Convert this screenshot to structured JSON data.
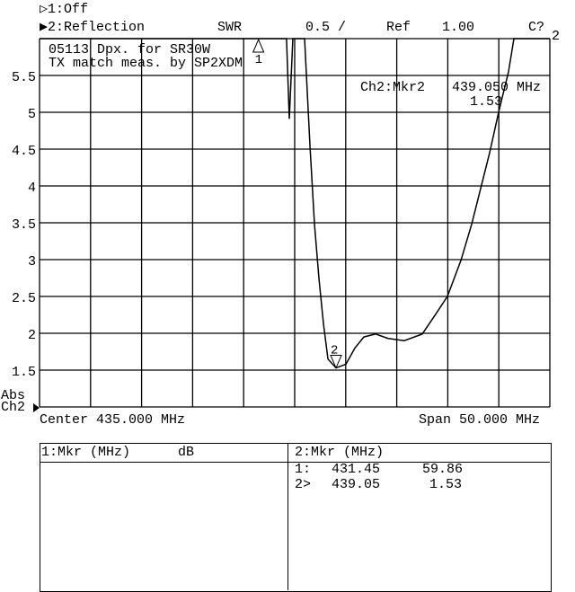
{
  "header": {
    "channel1": "▷1:Off",
    "channel2": "▶2:Reflection",
    "format": "SWR",
    "scale": "0.5 /",
    "ref": "Ref",
    "ref_value": "1.00",
    "cal_status": "C?",
    "cal_sub": "2"
  },
  "annotation": {
    "line1": "05113 Dpx. for SR30W",
    "line2": "TX match meas. by SP2XDM"
  },
  "marker_readout": {
    "label": "Ch2:Mkr2",
    "freq": "439.050 MHz",
    "value": "1.53"
  },
  "side": {
    "abs": "Abs",
    "ch": "Ch2"
  },
  "footer": {
    "center": "Center 435.000 MHz",
    "span": "Span 50.000 MHz"
  },
  "table": {
    "left_header": "1:Mkr (MHz)",
    "left_unit": "dB",
    "right_header": "2:Mkr (MHz)",
    "rows": [
      {
        "id": "1:",
        "freq": "431.45",
        "value": "59.86"
      },
      {
        "id": "2>",
        "freq": "439.05",
        "value": "1.53"
      }
    ]
  },
  "chart_data": {
    "type": "line",
    "xlabel": "",
    "ylabel": "",
    "xlim": [
      410,
      460
    ],
    "ylim": [
      1.0,
      6.0
    ],
    "grid": true,
    "y_ticks": [
      "5.5",
      "5",
      "4.5",
      "4",
      "3.5",
      "3",
      "2.5",
      "2",
      "1.5"
    ],
    "y_tick_values": [
      5.5,
      5,
      4.5,
      4,
      3.5,
      3,
      2.5,
      2,
      1.5
    ],
    "trace_color": "#000000",
    "series": [
      {
        "x": [
          410,
          434.2,
          434.47,
          434.82,
          435.97,
          436.5,
          436.94,
          437.38,
          437.82,
          438.26,
          439.05,
          440.02,
          440.9,
          441.78,
          442.92,
          444.15,
          445.74,
          447.5,
          448.82,
          449.96,
          451.29,
          452.34,
          454.1,
          454.98,
          455.95,
          456.48,
          460
        ],
        "y": [
          6,
          6,
          4.91,
          6,
          6,
          4.54,
          3.48,
          2.74,
          2.13,
          1.65,
          1.53,
          1.58,
          1.8,
          1.95,
          1.99,
          1.93,
          1.9,
          1.99,
          2.26,
          2.5,
          2.99,
          3.48,
          4.45,
          5.0,
          5.55,
          6,
          6
        ]
      }
    ],
    "markers": [
      {
        "label": "1",
        "x": 431.45
      },
      {
        "label": "2",
        "x": 439.05,
        "y": 1.53
      }
    ]
  }
}
